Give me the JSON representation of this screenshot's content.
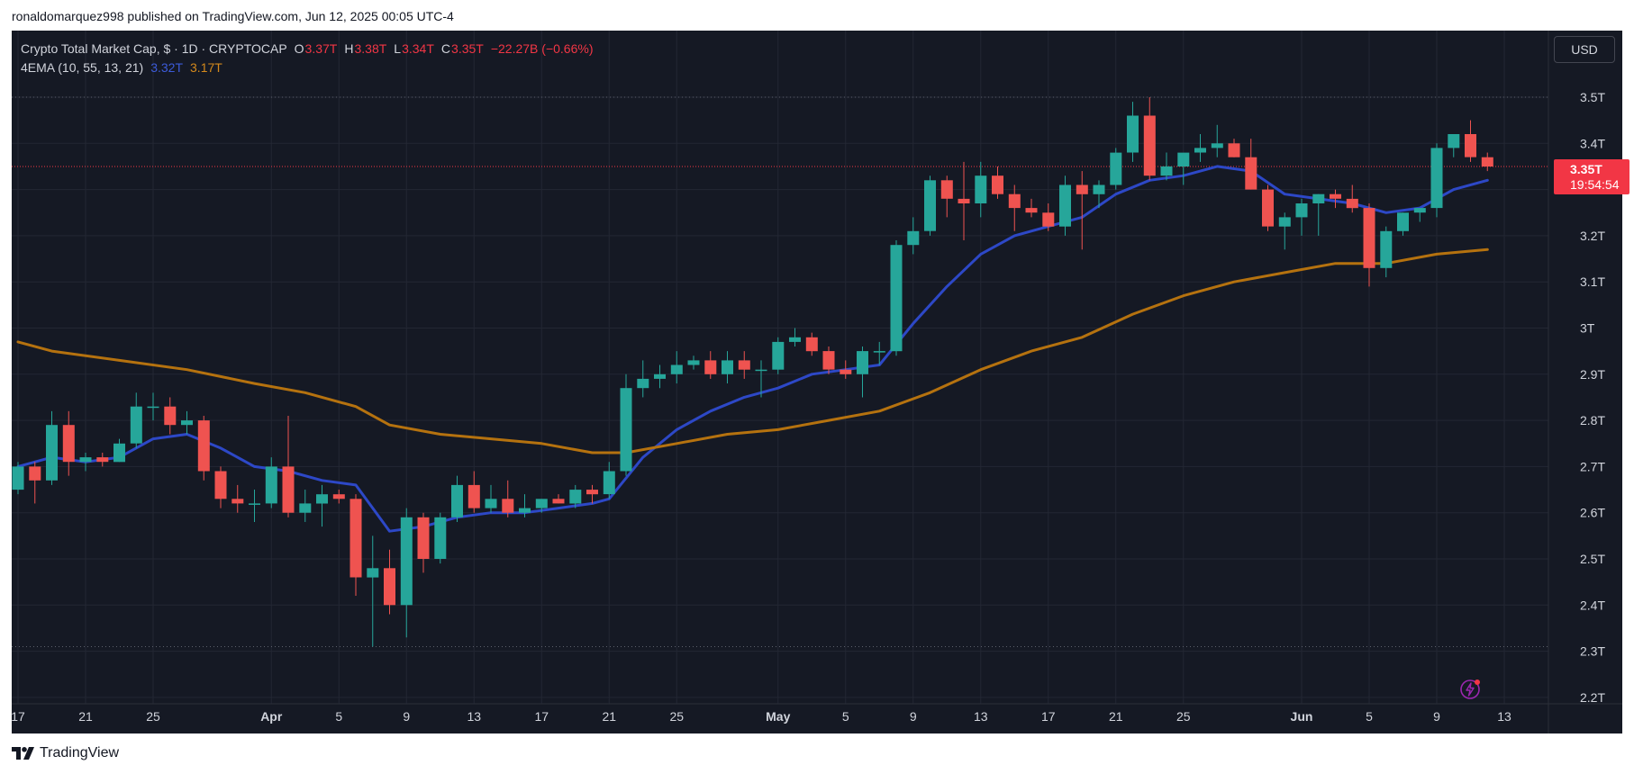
{
  "header": {
    "published_by": "ronaldomarquez998 published on TradingView.com, Jun 12, 2025 00:05 UTC-4"
  },
  "legend": {
    "symbol": "Crypto Total Market Cap, $ · 1D · CRYPTOCAP",
    "o_label": "O",
    "o_value": "3.37T",
    "h_label": "H",
    "h_value": "3.38T",
    "l_label": "L",
    "l_value": "3.34T",
    "c_label": "C",
    "c_value": "3.35T",
    "change": "−22.27B (−0.66%)",
    "indicator": "4EMA (10, 55, 13, 21)",
    "ema_fast_value": "3.32T",
    "ema_slow_value": "3.17T"
  },
  "currency_button": "USD",
  "price_badge": {
    "price": "3.35T",
    "countdown": "19:54:54"
  },
  "footer": {
    "brand": "TradingView"
  },
  "colors": {
    "background": "#151924",
    "up": "#26a69a",
    "down": "#ef5350",
    "ema_fast": "#2d48c7",
    "ema_slow": "#b5720f",
    "grid": "#232733",
    "axis_text": "#d1d4dc"
  },
  "chart_data": {
    "type": "candlestick",
    "title": "Crypto Total Market Cap, $ · 1D · CRYPTOCAP",
    "ylim": [
      2.175,
      3.55
    ],
    "y_ticks": [
      3.5,
      3.4,
      3.3,
      3.2,
      3.1,
      3.0,
      2.9,
      2.8,
      2.7,
      2.6,
      2.5,
      2.4,
      2.3,
      2.2
    ],
    "y_tick_labels": [
      "3.5T",
      "3.4T",
      "3.3T",
      "3.2T",
      "3.1T",
      "3T",
      "2.9T",
      "2.8T",
      "2.7T",
      "2.6T",
      "2.5T",
      "2.4T",
      "2.3T",
      "2.2T"
    ],
    "x_tick_labels": [
      "17",
      "21",
      "25",
      "Apr",
      "5",
      "9",
      "13",
      "17",
      "21",
      "25",
      "May",
      "5",
      "9",
      "13",
      "17",
      "21",
      "25",
      "Jun",
      "5",
      "9",
      "13"
    ],
    "x_tick_dates": [
      "2025-03-17",
      "2025-03-21",
      "2025-03-25",
      "2025-04-01",
      "2025-04-05",
      "2025-04-09",
      "2025-04-13",
      "2025-04-17",
      "2025-04-21",
      "2025-04-25",
      "2025-05-01",
      "2025-05-05",
      "2025-05-09",
      "2025-05-13",
      "2025-05-17",
      "2025-05-21",
      "2025-05-25",
      "2025-06-01",
      "2025-06-05",
      "2025-06-09",
      "2025-06-13"
    ],
    "date_range": [
      "2025-03-17",
      "2025-06-14"
    ],
    "dotted_levels": [
      3.5,
      2.31
    ],
    "current_price": 3.35,
    "candles": [
      {
        "date": "2025-03-17",
        "o": 2.65,
        "h": 2.71,
        "l": 2.64,
        "c": 2.7
      },
      {
        "date": "2025-03-18",
        "o": 2.7,
        "h": 2.71,
        "l": 2.62,
        "c": 2.67
      },
      {
        "date": "2025-03-19",
        "o": 2.67,
        "h": 2.82,
        "l": 2.66,
        "c": 2.79
      },
      {
        "date": "2025-03-20",
        "o": 2.79,
        "h": 2.82,
        "l": 2.68,
        "c": 2.71
      },
      {
        "date": "2025-03-21",
        "o": 2.71,
        "h": 2.73,
        "l": 2.69,
        "c": 2.72
      },
      {
        "date": "2025-03-22",
        "o": 2.72,
        "h": 2.73,
        "l": 2.7,
        "c": 2.71
      },
      {
        "date": "2025-03-23",
        "o": 2.71,
        "h": 2.76,
        "l": 2.71,
        "c": 2.75
      },
      {
        "date": "2025-03-24",
        "o": 2.75,
        "h": 2.86,
        "l": 2.74,
        "c": 2.83
      },
      {
        "date": "2025-03-25",
        "o": 2.83,
        "h": 2.86,
        "l": 2.8,
        "c": 2.83
      },
      {
        "date": "2025-03-26",
        "o": 2.83,
        "h": 2.85,
        "l": 2.77,
        "c": 2.79
      },
      {
        "date": "2025-03-27",
        "o": 2.79,
        "h": 2.82,
        "l": 2.77,
        "c": 2.8
      },
      {
        "date": "2025-03-28",
        "o": 2.8,
        "h": 2.81,
        "l": 2.67,
        "c": 2.69
      },
      {
        "date": "2025-03-29",
        "o": 2.69,
        "h": 2.7,
        "l": 2.61,
        "c": 2.63
      },
      {
        "date": "2025-03-30",
        "o": 2.63,
        "h": 2.66,
        "l": 2.6,
        "c": 2.62
      },
      {
        "date": "2025-03-31",
        "o": 2.62,
        "h": 2.65,
        "l": 2.58,
        "c": 2.62
      },
      {
        "date": "2025-04-01",
        "o": 2.62,
        "h": 2.72,
        "l": 2.61,
        "c": 2.7
      },
      {
        "date": "2025-04-02",
        "o": 2.7,
        "h": 2.81,
        "l": 2.59,
        "c": 2.6
      },
      {
        "date": "2025-04-03",
        "o": 2.6,
        "h": 2.65,
        "l": 2.58,
        "c": 2.62
      },
      {
        "date": "2025-04-04",
        "o": 2.62,
        "h": 2.66,
        "l": 2.57,
        "c": 2.64
      },
      {
        "date": "2025-04-05",
        "o": 2.64,
        "h": 2.65,
        "l": 2.62,
        "c": 2.63
      },
      {
        "date": "2025-04-06",
        "o": 2.63,
        "h": 2.64,
        "l": 2.42,
        "c": 2.46
      },
      {
        "date": "2025-04-07",
        "o": 2.46,
        "h": 2.55,
        "l": 2.31,
        "c": 2.48
      },
      {
        "date": "2025-04-08",
        "o": 2.48,
        "h": 2.52,
        "l": 2.38,
        "c": 2.4
      },
      {
        "date": "2025-04-09",
        "o": 2.4,
        "h": 2.61,
        "l": 2.33,
        "c": 2.59
      },
      {
        "date": "2025-04-10",
        "o": 2.59,
        "h": 2.6,
        "l": 2.47,
        "c": 2.5
      },
      {
        "date": "2025-04-11",
        "o": 2.5,
        "h": 2.6,
        "l": 2.49,
        "c": 2.59
      },
      {
        "date": "2025-04-12",
        "o": 2.59,
        "h": 2.68,
        "l": 2.58,
        "c": 2.66
      },
      {
        "date": "2025-04-13",
        "o": 2.66,
        "h": 2.69,
        "l": 2.6,
        "c": 2.61
      },
      {
        "date": "2025-04-14",
        "o": 2.61,
        "h": 2.66,
        "l": 2.6,
        "c": 2.63
      },
      {
        "date": "2025-04-15",
        "o": 2.63,
        "h": 2.67,
        "l": 2.59,
        "c": 2.6
      },
      {
        "date": "2025-04-16",
        "o": 2.6,
        "h": 2.64,
        "l": 2.59,
        "c": 2.61
      },
      {
        "date": "2025-04-17",
        "o": 2.61,
        "h": 2.63,
        "l": 2.6,
        "c": 2.63
      },
      {
        "date": "2025-04-18",
        "o": 2.63,
        "h": 2.64,
        "l": 2.62,
        "c": 2.62
      },
      {
        "date": "2025-04-19",
        "o": 2.62,
        "h": 2.66,
        "l": 2.61,
        "c": 2.65
      },
      {
        "date": "2025-04-20",
        "o": 2.65,
        "h": 2.66,
        "l": 2.62,
        "c": 2.64
      },
      {
        "date": "2025-04-21",
        "o": 2.64,
        "h": 2.71,
        "l": 2.63,
        "c": 2.69
      },
      {
        "date": "2025-04-22",
        "o": 2.69,
        "h": 2.9,
        "l": 2.68,
        "c": 2.87
      },
      {
        "date": "2025-04-23",
        "o": 2.87,
        "h": 2.93,
        "l": 2.85,
        "c": 2.89
      },
      {
        "date": "2025-04-24",
        "o": 2.89,
        "h": 2.92,
        "l": 2.87,
        "c": 2.9
      },
      {
        "date": "2025-04-25",
        "o": 2.9,
        "h": 2.95,
        "l": 2.88,
        "c": 2.92
      },
      {
        "date": "2025-04-26",
        "o": 2.92,
        "h": 2.94,
        "l": 2.91,
        "c": 2.93
      },
      {
        "date": "2025-04-27",
        "o": 2.93,
        "h": 2.95,
        "l": 2.89,
        "c": 2.9
      },
      {
        "date": "2025-04-28",
        "o": 2.9,
        "h": 2.95,
        "l": 2.88,
        "c": 2.93
      },
      {
        "date": "2025-04-29",
        "o": 2.93,
        "h": 2.95,
        "l": 2.89,
        "c": 2.91
      },
      {
        "date": "2025-04-30",
        "o": 2.91,
        "h": 2.93,
        "l": 2.85,
        "c": 2.91
      },
      {
        "date": "2025-05-01",
        "o": 2.91,
        "h": 2.98,
        "l": 2.9,
        "c": 2.97
      },
      {
        "date": "2025-05-02",
        "o": 2.97,
        "h": 3.0,
        "l": 2.96,
        "c": 2.98
      },
      {
        "date": "2025-05-03",
        "o": 2.98,
        "h": 2.99,
        "l": 2.94,
        "c": 2.95
      },
      {
        "date": "2025-05-04",
        "o": 2.95,
        "h": 2.96,
        "l": 2.9,
        "c": 2.91
      },
      {
        "date": "2025-05-05",
        "o": 2.91,
        "h": 2.93,
        "l": 2.89,
        "c": 2.9
      },
      {
        "date": "2025-05-06",
        "o": 2.9,
        "h": 2.96,
        "l": 2.85,
        "c": 2.95
      },
      {
        "date": "2025-05-07",
        "o": 2.95,
        "h": 2.97,
        "l": 2.92,
        "c": 2.95
      },
      {
        "date": "2025-05-08",
        "o": 2.95,
        "h": 3.19,
        "l": 2.94,
        "c": 3.18
      },
      {
        "date": "2025-05-09",
        "o": 3.18,
        "h": 3.24,
        "l": 3.16,
        "c": 3.21
      },
      {
        "date": "2025-05-10",
        "o": 3.21,
        "h": 3.33,
        "l": 3.2,
        "c": 3.32
      },
      {
        "date": "2025-05-11",
        "o": 3.32,
        "h": 3.33,
        "l": 3.24,
        "c": 3.28
      },
      {
        "date": "2025-05-12",
        "o": 3.28,
        "h": 3.36,
        "l": 3.19,
        "c": 3.27
      },
      {
        "date": "2025-05-13",
        "o": 3.27,
        "h": 3.36,
        "l": 3.24,
        "c": 3.33
      },
      {
        "date": "2025-05-14",
        "o": 3.33,
        "h": 3.35,
        "l": 3.28,
        "c": 3.29
      },
      {
        "date": "2025-05-15",
        "o": 3.29,
        "h": 3.31,
        "l": 3.21,
        "c": 3.26
      },
      {
        "date": "2025-05-16",
        "o": 3.26,
        "h": 3.28,
        "l": 3.24,
        "c": 3.25
      },
      {
        "date": "2025-05-17",
        "o": 3.25,
        "h": 3.27,
        "l": 3.21,
        "c": 3.22
      },
      {
        "date": "2025-05-18",
        "o": 3.22,
        "h": 3.33,
        "l": 3.2,
        "c": 3.31
      },
      {
        "date": "2025-05-19",
        "o": 3.31,
        "h": 3.34,
        "l": 3.17,
        "c": 3.29
      },
      {
        "date": "2025-05-20",
        "o": 3.29,
        "h": 3.32,
        "l": 3.26,
        "c": 3.31
      },
      {
        "date": "2025-05-21",
        "o": 3.31,
        "h": 3.39,
        "l": 3.3,
        "c": 3.38
      },
      {
        "date": "2025-05-22",
        "o": 3.38,
        "h": 3.49,
        "l": 3.36,
        "c": 3.46
      },
      {
        "date": "2025-05-23",
        "o": 3.46,
        "h": 3.5,
        "l": 3.32,
        "c": 3.33
      },
      {
        "date": "2025-05-24",
        "o": 3.33,
        "h": 3.38,
        "l": 3.32,
        "c": 3.35
      },
      {
        "date": "2025-05-25",
        "o": 3.35,
        "h": 3.37,
        "l": 3.31,
        "c": 3.38
      },
      {
        "date": "2025-05-26",
        "o": 3.38,
        "h": 3.42,
        "l": 3.36,
        "c": 3.39
      },
      {
        "date": "2025-05-27",
        "o": 3.39,
        "h": 3.44,
        "l": 3.37,
        "c": 3.4
      },
      {
        "date": "2025-05-28",
        "o": 3.4,
        "h": 3.41,
        "l": 3.37,
        "c": 3.37
      },
      {
        "date": "2025-05-29",
        "o": 3.37,
        "h": 3.41,
        "l": 3.3,
        "c": 3.3
      },
      {
        "date": "2025-05-30",
        "o": 3.3,
        "h": 3.31,
        "l": 3.21,
        "c": 3.22
      },
      {
        "date": "2025-05-31",
        "o": 3.22,
        "h": 3.25,
        "l": 3.17,
        "c": 3.24
      },
      {
        "date": "2025-06-01",
        "o": 3.24,
        "h": 3.28,
        "l": 3.2,
        "c": 3.27
      },
      {
        "date": "2025-06-02",
        "o": 3.27,
        "h": 3.29,
        "l": 3.2,
        "c": 3.29
      },
      {
        "date": "2025-06-03",
        "o": 3.29,
        "h": 3.3,
        "l": 3.26,
        "c": 3.28
      },
      {
        "date": "2025-06-04",
        "o": 3.28,
        "h": 3.31,
        "l": 3.25,
        "c": 3.26
      },
      {
        "date": "2025-06-05",
        "o": 3.26,
        "h": 3.27,
        "l": 3.09,
        "c": 3.13
      },
      {
        "date": "2025-06-06",
        "o": 3.13,
        "h": 3.22,
        "l": 3.11,
        "c": 3.21
      },
      {
        "date": "2025-06-07",
        "o": 3.21,
        "h": 3.25,
        "l": 3.2,
        "c": 3.25
      },
      {
        "date": "2025-06-08",
        "o": 3.25,
        "h": 3.26,
        "l": 3.23,
        "c": 3.26
      },
      {
        "date": "2025-06-09",
        "o": 3.26,
        "h": 3.4,
        "l": 3.24,
        "c": 3.39
      },
      {
        "date": "2025-06-10",
        "o": 3.39,
        "h": 3.42,
        "l": 3.37,
        "c": 3.42
      },
      {
        "date": "2025-06-11",
        "o": 3.42,
        "h": 3.45,
        "l": 3.36,
        "c": 3.37
      },
      {
        "date": "2025-06-12",
        "o": 3.37,
        "h": 3.38,
        "l": 3.34,
        "c": 3.35
      }
    ],
    "series": [
      {
        "name": "4EMA (10, 55, 13, 21)",
        "color": "#2d48c7",
        "points": [
          [
            "2025-03-17",
            2.7
          ],
          [
            "2025-03-19",
            2.72
          ],
          [
            "2025-03-21",
            2.71
          ],
          [
            "2025-03-23",
            2.72
          ],
          [
            "2025-03-25",
            2.76
          ],
          [
            "2025-03-27",
            2.77
          ],
          [
            "2025-03-29",
            2.74
          ],
          [
            "2025-03-31",
            2.7
          ],
          [
            "2025-04-02",
            2.69
          ],
          [
            "2025-04-04",
            2.67
          ],
          [
            "2025-04-06",
            2.66
          ],
          [
            "2025-04-08",
            2.56
          ],
          [
            "2025-04-10",
            2.57
          ],
          [
            "2025-04-12",
            2.59
          ],
          [
            "2025-04-14",
            2.6
          ],
          [
            "2025-04-16",
            2.6
          ],
          [
            "2025-04-18",
            2.61
          ],
          [
            "2025-04-20",
            2.62
          ],
          [
            "2025-04-21",
            2.63
          ],
          [
            "2025-04-23",
            2.72
          ],
          [
            "2025-04-25",
            2.78
          ],
          [
            "2025-04-27",
            2.82
          ],
          [
            "2025-04-29",
            2.85
          ],
          [
            "2025-05-01",
            2.87
          ],
          [
            "2025-05-03",
            2.9
          ],
          [
            "2025-05-05",
            2.91
          ],
          [
            "2025-05-07",
            2.92
          ],
          [
            "2025-05-09",
            3.01
          ],
          [
            "2025-05-11",
            3.09
          ],
          [
            "2025-05-13",
            3.16
          ],
          [
            "2025-05-15",
            3.2
          ],
          [
            "2025-05-17",
            3.22
          ],
          [
            "2025-05-19",
            3.24
          ],
          [
            "2025-05-21",
            3.29
          ],
          [
            "2025-05-23",
            3.32
          ],
          [
            "2025-05-25",
            3.33
          ],
          [
            "2025-05-27",
            3.35
          ],
          [
            "2025-05-29",
            3.34
          ],
          [
            "2025-05-31",
            3.29
          ],
          [
            "2025-06-02",
            3.28
          ],
          [
            "2025-06-04",
            3.27
          ],
          [
            "2025-06-06",
            3.25
          ],
          [
            "2025-06-08",
            3.26
          ],
          [
            "2025-06-10",
            3.3
          ],
          [
            "2025-06-12",
            3.32
          ]
        ]
      },
      {
        "name": "EMA 55",
        "color": "#b5720f",
        "points": [
          [
            "2025-03-17",
            2.97
          ],
          [
            "2025-03-19",
            2.95
          ],
          [
            "2025-03-23",
            2.93
          ],
          [
            "2025-03-27",
            2.91
          ],
          [
            "2025-03-31",
            2.88
          ],
          [
            "2025-04-03",
            2.86
          ],
          [
            "2025-04-06",
            2.83
          ],
          [
            "2025-04-08",
            2.79
          ],
          [
            "2025-04-11",
            2.77
          ],
          [
            "2025-04-14",
            2.76
          ],
          [
            "2025-04-17",
            2.75
          ],
          [
            "2025-04-20",
            2.73
          ],
          [
            "2025-04-22",
            2.73
          ],
          [
            "2025-04-25",
            2.75
          ],
          [
            "2025-04-28",
            2.77
          ],
          [
            "2025-05-01",
            2.78
          ],
          [
            "2025-05-04",
            2.8
          ],
          [
            "2025-05-07",
            2.82
          ],
          [
            "2025-05-10",
            2.86
          ],
          [
            "2025-05-13",
            2.91
          ],
          [
            "2025-05-16",
            2.95
          ],
          [
            "2025-05-19",
            2.98
          ],
          [
            "2025-05-22",
            3.03
          ],
          [
            "2025-05-25",
            3.07
          ],
          [
            "2025-05-28",
            3.1
          ],
          [
            "2025-05-31",
            3.12
          ],
          [
            "2025-06-03",
            3.14
          ],
          [
            "2025-06-06",
            3.14
          ],
          [
            "2025-06-09",
            3.16
          ],
          [
            "2025-06-12",
            3.17
          ]
        ]
      }
    ]
  }
}
